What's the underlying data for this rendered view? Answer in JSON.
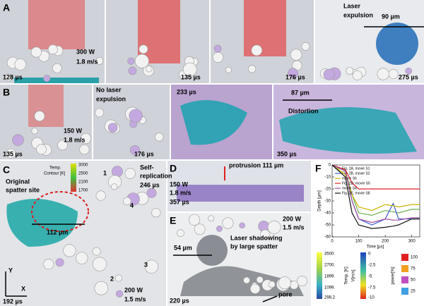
{
  "panels": {
    "A": {
      "label": "A",
      "times": [
        "128 µs",
        "135 µs",
        "176 µs",
        "275 µs"
      ],
      "power": "300 W",
      "speed": "1.8 m/s",
      "note_lines": [
        "Laser",
        "expulsion"
      ],
      "scale": "90 µm"
    },
    "B": {
      "label": "B",
      "times": [
        "135 µs",
        "176 µs",
        "233 µs",
        "350 µs"
      ],
      "power": "150 W",
      "speed": "1.8 m/s",
      "note_lines": [
        "No laser",
        "expulsion"
      ],
      "scale": "87 µm",
      "distortion": "Distortion"
    },
    "C": {
      "label": "C",
      "site_lines": [
        "Original",
        "spatter site"
      ],
      "colorbar_title_lines": [
        "Temp.",
        "Contour [K]"
      ],
      "colorbar_ticks": [
        "3000",
        "2500",
        "2100",
        "1700"
      ],
      "scale": "112 µm",
      "replication_lines": [
        "Self-",
        "replication"
      ],
      "replication_time": "246 µs",
      "numbers": [
        "1",
        "2",
        "3",
        "4"
      ],
      "time": "192 µs",
      "power": "200 W",
      "speed": "1.5 m/s",
      "axes": [
        "Y",
        "X"
      ]
    },
    "D": {
      "label": "D",
      "protrusion": "protrusion 111 µm",
      "power": "150 W",
      "speed": "1.8 m/s",
      "time": "357 µs"
    },
    "E": {
      "label": "E",
      "power": "200 W",
      "speed": "1.5 m/s",
      "note_lines": [
        "Laser shadowing",
        "by large spatter"
      ],
      "scale": "54 µm",
      "time": "220 µs",
      "pore": "pore"
    },
    "legends": {
      "temp_title": "Temp. [K]",
      "temp_ticks": [
        "3500.",
        "2700.",
        "1899.",
        "1099.",
        "298.2"
      ],
      "v_title": "V[m/s]",
      "v_ticks": [
        "0",
        "-2.5",
        "-5",
        "-7.5",
        "-10"
      ],
      "power_title": "power[%]",
      "power_ticks": [
        "100",
        "75",
        "50",
        "25"
      ]
    }
  },
  "chart_data": {
    "type": "line",
    "label": "F",
    "ylabel": "Depth [µm]",
    "xlabel": "Time [µs]",
    "x": [
      0,
      50,
      75,
      100,
      150,
      200,
      230,
      250,
      300,
      330
    ],
    "xlim": [
      0,
      330
    ],
    "xticks": [
      0,
      100,
      200,
      300
    ],
    "ylim": [
      -60,
      0
    ],
    "yticks": [
      0,
      -10,
      -20,
      -30,
      -40,
      -50,
      -60
    ],
    "series": [
      {
        "name": "Fig. 2A, movie S1",
        "color": "#6ab04c",
        "values": [
          0,
          -5,
          -25,
          -40,
          -42,
          -38,
          -39,
          -40,
          -37,
          -37
        ]
      },
      {
        "name": "Fig. 2B, movie S2",
        "color": "#3a5fcd",
        "values": [
          0,
          -5,
          -30,
          -45,
          -50,
          -45,
          -32,
          -45,
          -45,
          -45
        ]
      },
      {
        "name": "movie S6",
        "color": "#c8b400",
        "values": [
          0,
          -8,
          -25,
          -35,
          -38,
          -33,
          -34,
          -35,
          -33,
          -33
        ]
      },
      {
        "name": "Fig. 2D, movie S5",
        "color": "#e0202a",
        "values": [
          0,
          -4,
          -15,
          -20,
          -20,
          -20,
          -20,
          -20,
          -20,
          -20
        ]
      },
      {
        "name": "movie S4",
        "color": "#a04ca0",
        "values": [
          0,
          -5,
          -30,
          -45,
          -48,
          -45,
          -46,
          -46,
          -44,
          -44
        ]
      },
      {
        "name": "Fig. 2E, movie S8",
        "color": "#111111",
        "values": [
          0,
          -10,
          -40,
          -50,
          -53,
          -52,
          -51,
          -50,
          -45,
          -45
        ]
      }
    ]
  }
}
